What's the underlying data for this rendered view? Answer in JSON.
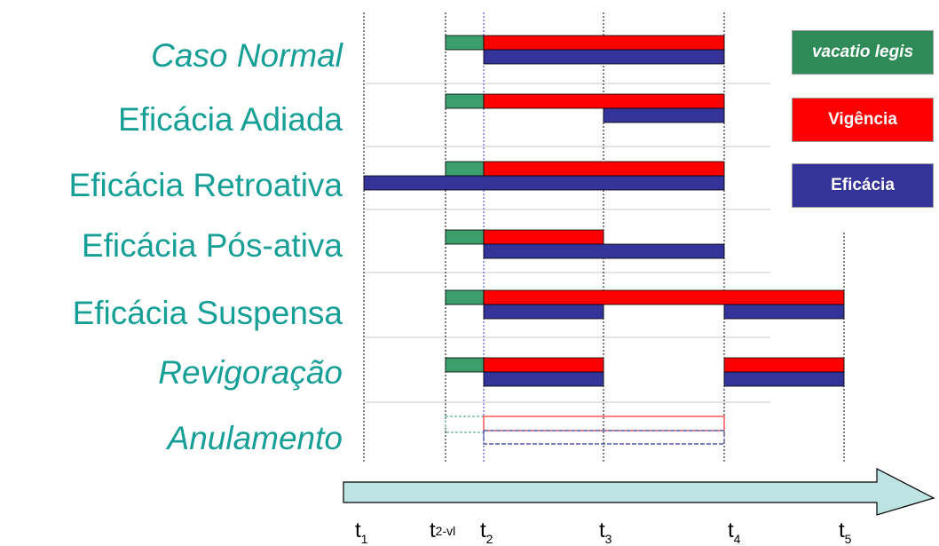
{
  "rows": [
    {
      "label": "Caso Normal",
      "italic": true
    },
    {
      "label": "Eficácia Adiada",
      "italic": false
    },
    {
      "label": "Eficácia Retroativa",
      "italic": false
    },
    {
      "label": "Eficácia Pós-ativa",
      "italic": false
    },
    {
      "label": "Eficácia Suspensa",
      "italic": false
    },
    {
      "label": "Revigoração",
      "italic": true
    },
    {
      "label": "Anulamento",
      "italic": true
    }
  ],
  "legend": [
    {
      "label": "vacatio legis",
      "color": "#2e8b57",
      "italic": true
    },
    {
      "label": "Vigência",
      "color": "#ff0000",
      "italic": false
    },
    {
      "label": "Eficácia",
      "color": "#333399",
      "italic": false
    }
  ],
  "ticks": [
    {
      "base": "t",
      "sub": "1"
    },
    {
      "base": "t",
      "sub": "2-vl"
    },
    {
      "base": "t",
      "sub": "2"
    },
    {
      "base": "t",
      "sub": "3"
    },
    {
      "base": "t",
      "sub": "4"
    },
    {
      "base": "t",
      "sub": "5"
    }
  ],
  "colors": {
    "label": "#169f96",
    "vacatio": "#3a9f6d",
    "vigencia": "#ff0000",
    "eficacia": "#333399",
    "arrow_fill": "#bde3e3"
  }
}
